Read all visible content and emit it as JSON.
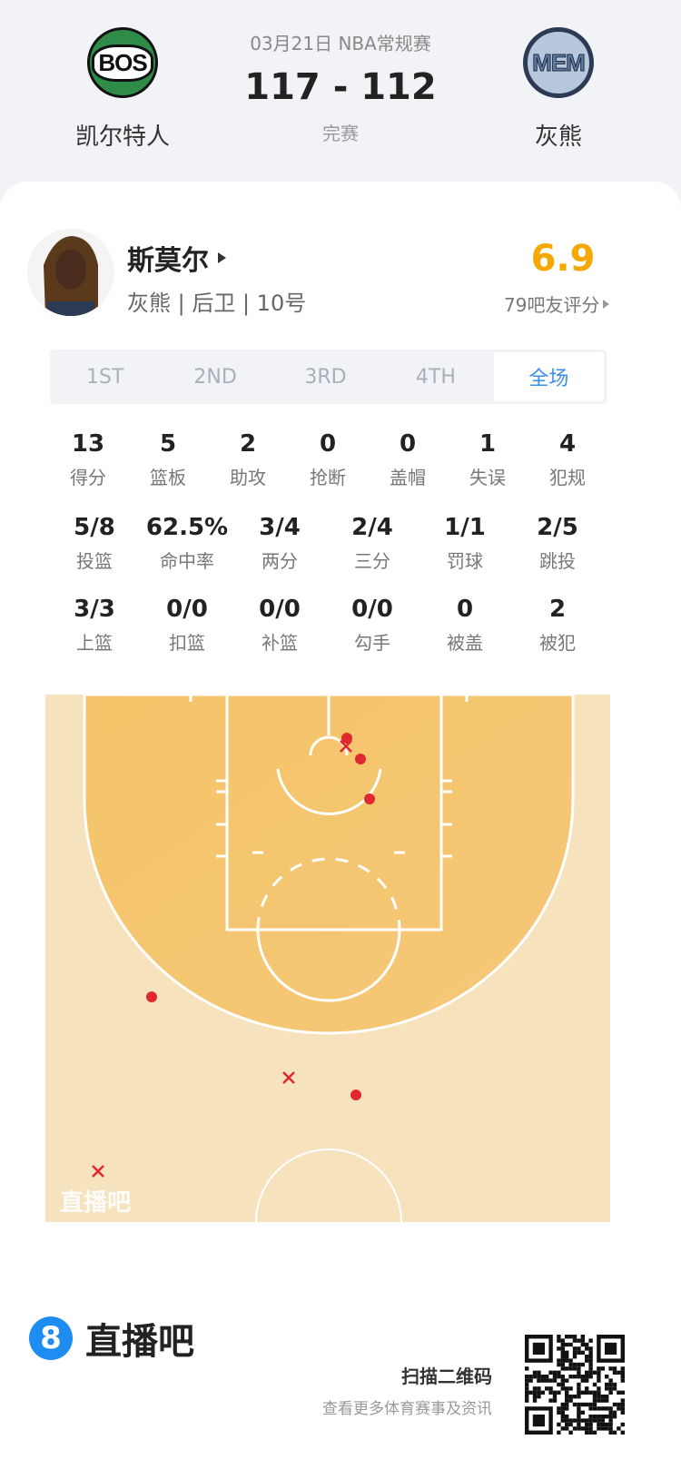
{
  "game": {
    "date_league": "03月21日 NBA常规赛",
    "score": "117 - 112",
    "status": "完赛",
    "home": {
      "abbr": "BOS",
      "name": "凯尔特人",
      "color": "#2e8b48"
    },
    "away": {
      "abbr": "MEM",
      "name": "灰熊",
      "color": "#2b3a55"
    }
  },
  "player": {
    "name": "斯莫尔",
    "info": "灰熊 | 后卫 | 10号",
    "rating": "6.9",
    "rating_color": "#f5a800",
    "rating_count": "79吧友评分"
  },
  "tabs": [
    {
      "label": "1ST"
    },
    {
      "label": "2ND"
    },
    {
      "label": "3RD"
    },
    {
      "label": "4TH"
    },
    {
      "label": "全场",
      "active": true
    }
  ],
  "stats_row1": [
    {
      "v": "13",
      "l": "得分"
    },
    {
      "v": "5",
      "l": "篮板"
    },
    {
      "v": "2",
      "l": "助攻"
    },
    {
      "v": "0",
      "l": "抢断"
    },
    {
      "v": "0",
      "l": "盖帽"
    },
    {
      "v": "1",
      "l": "失误"
    },
    {
      "v": "4",
      "l": "犯规"
    }
  ],
  "stats_row2": [
    {
      "v": "5/8",
      "l": "投篮"
    },
    {
      "v": "62.5%",
      "l": "命中率"
    },
    {
      "v": "3/4",
      "l": "两分"
    },
    {
      "v": "2/4",
      "l": "三分"
    },
    {
      "v": "1/1",
      "l": "罚球"
    },
    {
      "v": "2/5",
      "l": "跳投"
    }
  ],
  "stats_row3": [
    {
      "v": "3/3",
      "l": "上篮"
    },
    {
      "v": "0/0",
      "l": "扣篮"
    },
    {
      "v": "0/0",
      "l": "补篮"
    },
    {
      "v": "0/0",
      "l": "勾手"
    },
    {
      "v": "0",
      "l": "被盖"
    },
    {
      "v": "2",
      "l": "被犯"
    }
  ],
  "shot_chart": {
    "watermark": "直播吧",
    "shot_color": "#e0282e",
    "shots": [
      "made",
      "missed",
      "made",
      "made",
      "made",
      "missed",
      "made",
      "missed"
    ]
  },
  "footer": {
    "brand": "直播吧",
    "brand_color": "#1e8cf0",
    "qr_title": "扫描二维码",
    "qr_sub": "查看更多体育赛事及资讯"
  }
}
